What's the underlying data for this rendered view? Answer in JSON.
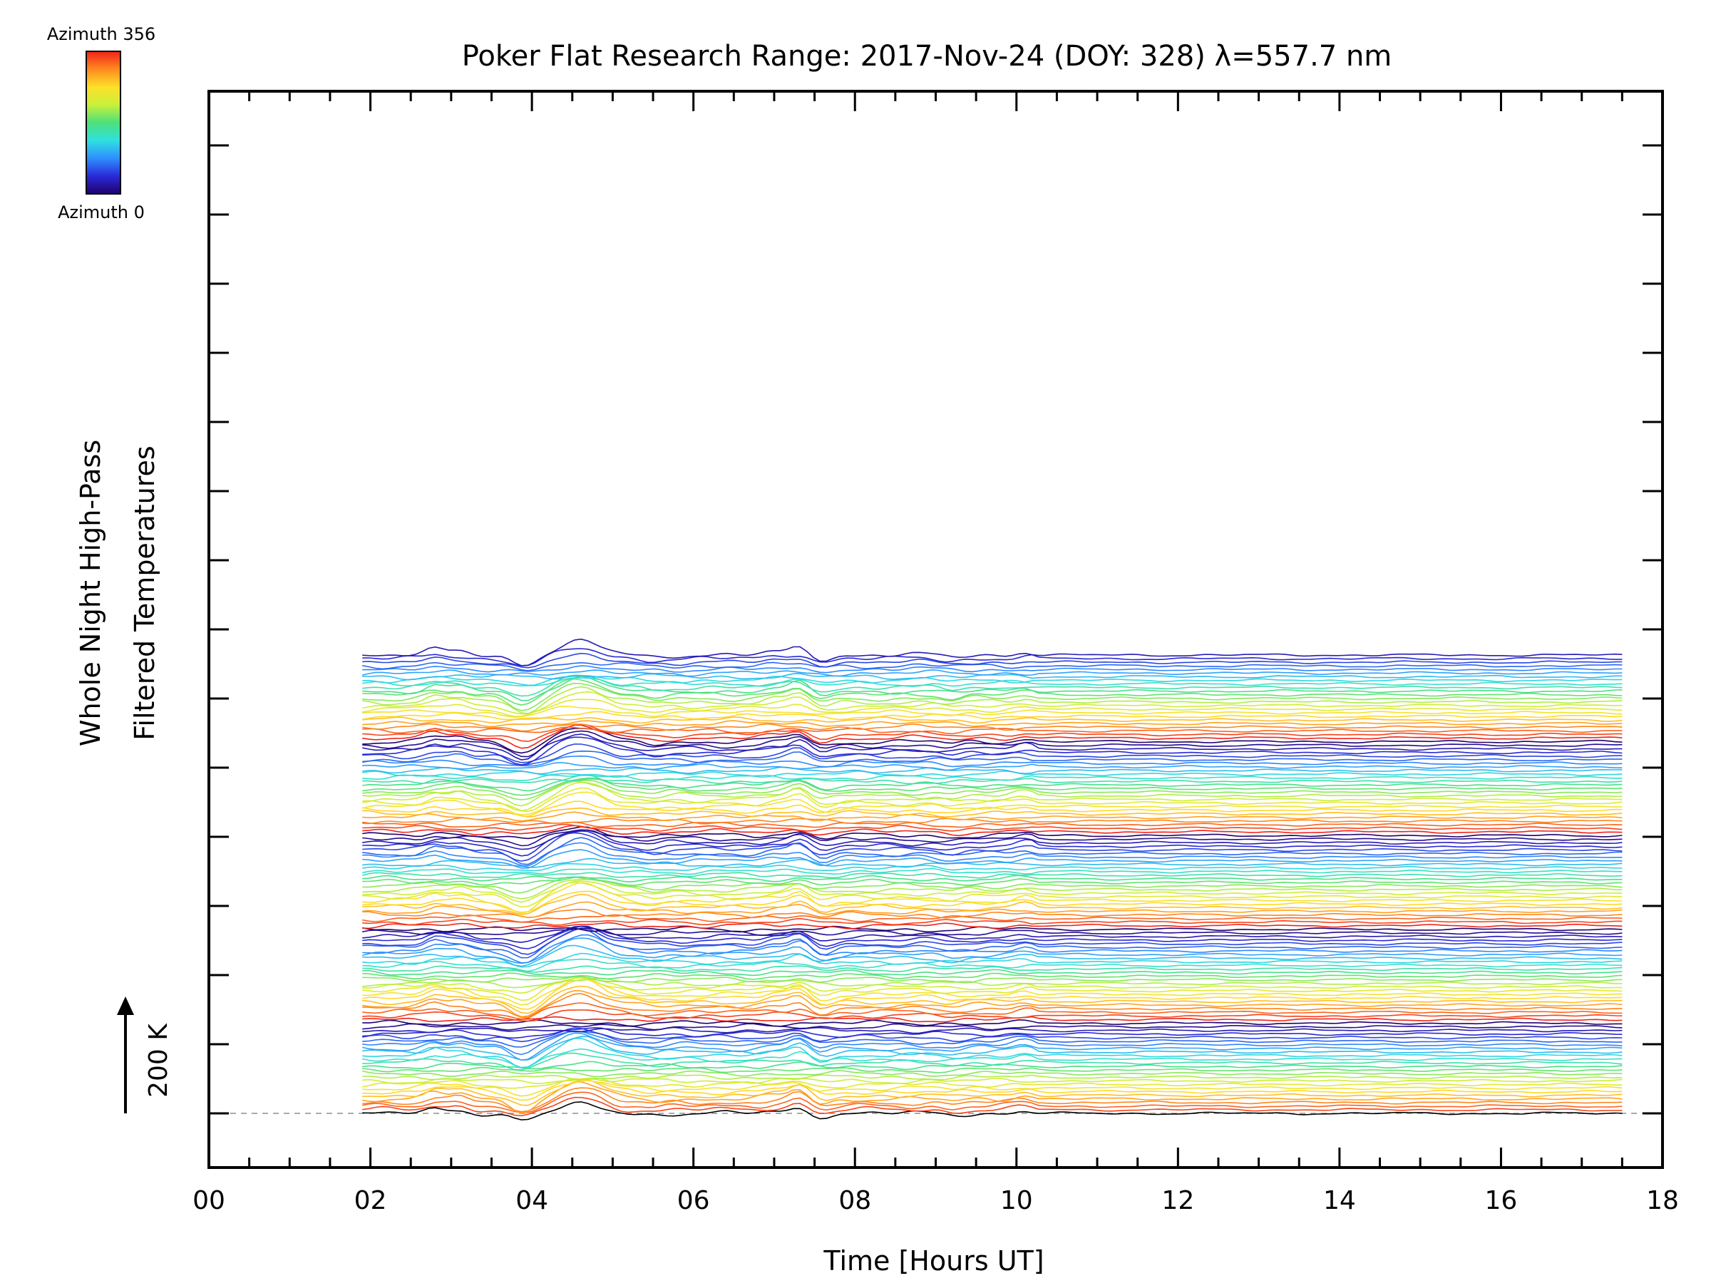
{
  "colors": {
    "colorbar_stops": [
      "#22006e",
      "#2a2ad8",
      "#2f8fff",
      "#2fe0e0",
      "#4de07a",
      "#c9f03a",
      "#ffe02a",
      "#ff8a1e",
      "#f0231a"
    ]
  },
  "colorbar": {
    "top_label": "Azimuth 356",
    "bottom_label": "Azimuth 0"
  },
  "scale_indicator": {
    "label": "200 K"
  },
  "chart_data": {
    "type": "line",
    "title": "Poker Flat Research Range: 2017-Nov-24 (DOY: 328) λ=557.7 nm",
    "xlabel": "Time [Hours UT]",
    "ylabel_line1": "Whole Night High-Pass",
    "ylabel_line2": "Filtered Temperatures",
    "xlim": [
      0,
      18
    ],
    "x_tick_labels": [
      "00",
      "02",
      "04",
      "06",
      "08",
      "10",
      "12",
      "14",
      "16",
      "18"
    ],
    "x_range_of_data": [
      1.9,
      17.5
    ],
    "n_series": 128,
    "series_spacing_K": 8.3,
    "azimuth_range_deg": [
      0,
      356
    ],
    "grid": false,
    "common_features_K": [
      {
        "x": 2.8,
        "value": 12
      },
      {
        "x": 3.1,
        "value": 10
      },
      {
        "x": 3.9,
        "value": -22
      },
      {
        "x": 4.6,
        "value": 32
      },
      {
        "x": 5.5,
        "value": -4
      },
      {
        "x": 7.0,
        "value": 6
      },
      {
        "x": 7.3,
        "value": 18
      },
      {
        "x": 7.6,
        "value": -10
      },
      {
        "x": 9.2,
        "value": -5
      },
      {
        "x": 10.1,
        "value": 8
      }
    ]
  }
}
